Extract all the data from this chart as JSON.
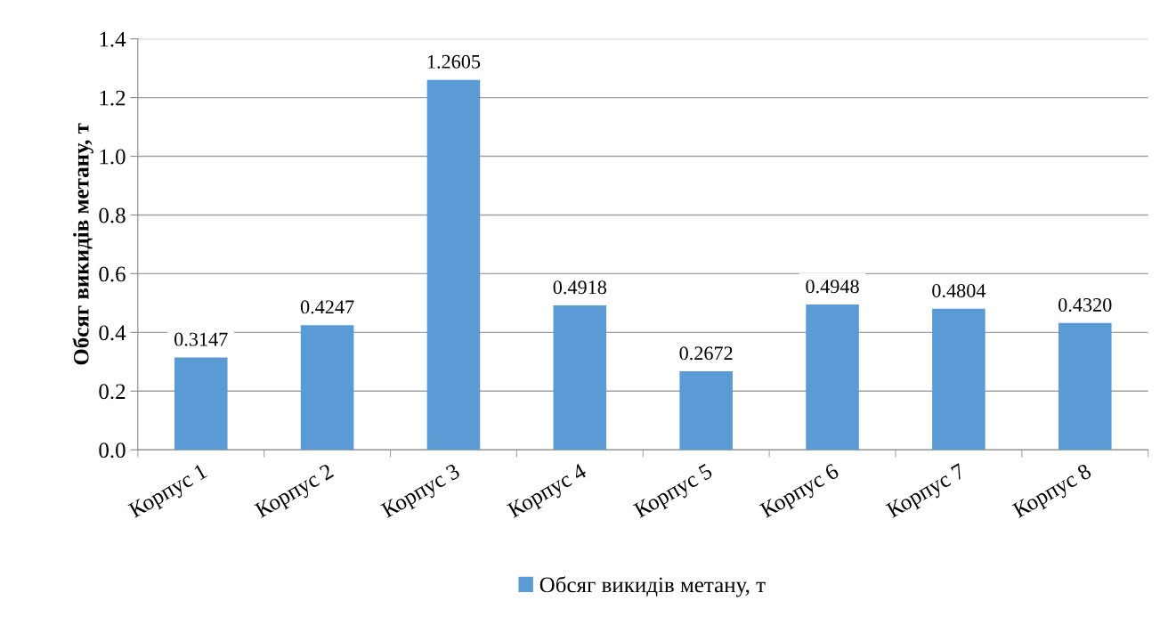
{
  "chart_data": {
    "type": "bar",
    "categories": [
      "Корпус 1",
      "Корпус 2",
      "Корпус 3",
      "Корпус 4",
      "Корпус 5",
      "Корпус 6",
      "Корпус 7",
      "Корпус 8"
    ],
    "series": [
      {
        "name": "Обсяг викидів метану, т",
        "color": "#5b9bd5",
        "values": [
          0.3147,
          0.4247,
          1.2605,
          0.4918,
          0.2672,
          0.4948,
          0.4804,
          0.432
        ],
        "value_labels": [
          "0.3147",
          "0.4247",
          "1.2605",
          "0.4918",
          "0.2672",
          "0.4948",
          "0.4804",
          "0.4320"
        ]
      }
    ],
    "ylabel": "Обсяг викидів метану, т",
    "ylim": [
      0,
      1.4
    ],
    "yticks": [
      {
        "value": 0,
        "label": "0.0"
      },
      {
        "value": 0.2,
        "label": "0.2"
      },
      {
        "value": 0.4,
        "label": "0.4"
      },
      {
        "value": 0.6,
        "label": "0.6"
      },
      {
        "value": 0.8,
        "label": "0.8"
      },
      {
        "value": 1.0,
        "label": "1.0"
      },
      {
        "value": 1.2,
        "label": "1.2"
      },
      {
        "value": 1.4,
        "label": "1.4"
      }
    ],
    "grid": "y",
    "legend": "bottom"
  }
}
